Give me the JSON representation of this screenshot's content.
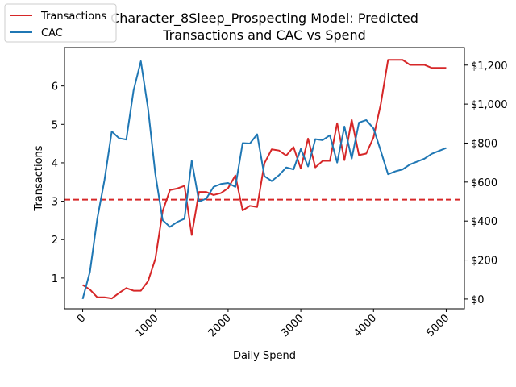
{
  "chart_data": {
    "type": "line",
    "title_lines": [
      "Character_8Sleep_Prospecting Model: Predicted",
      "Transactions and CAC vs Spend"
    ],
    "xlabel": "Daily Spend",
    "ylabel_left": "Transactions",
    "ylabel_right": "",
    "xlim": [
      -250,
      5250
    ],
    "ylim_left": [
      0.2,
      7.0
    ],
    "ylim_right": [
      -50,
      1290
    ],
    "x_ticks": [
      0,
      1000,
      2000,
      3000,
      4000,
      5000
    ],
    "x_tick_labels": [
      "0",
      "1000",
      "2000",
      "3000",
      "4000",
      "5000"
    ],
    "y_left_ticks": [
      1,
      2,
      3,
      4,
      5,
      6
    ],
    "y_left_tick_labels": [
      "1",
      "2",
      "3",
      "4",
      "5",
      "6"
    ],
    "y_right_ticks": [
      0,
      200,
      400,
      600,
      800,
      1000,
      1200
    ],
    "y_right_tick_labels": [
      "$0",
      "$200",
      "$400",
      "$600",
      "$800",
      "$1,000",
      "$1,200"
    ],
    "reference_line": {
      "axis": "left",
      "y": 3.04,
      "color": "#d62728",
      "style": "dashed"
    },
    "legend": {
      "placement": "top-left",
      "entries": [
        "Transactions",
        "CAC"
      ]
    },
    "grid": false,
    "x": [
      0,
      100,
      200,
      300,
      400,
      500,
      600,
      700,
      800,
      900,
      1000,
      1100,
      1200,
      1300,
      1400,
      1500,
      1600,
      1700,
      1800,
      1900,
      2000,
      2100,
      2200,
      2300,
      2400,
      2500,
      2600,
      2700,
      2800,
      2900,
      3000,
      3100,
      3200,
      3300,
      3400,
      3500,
      3600,
      3700,
      3800,
      3900,
      4000,
      4100,
      4200,
      4300,
      4400,
      4500,
      4600,
      4700,
      4800,
      4900,
      5000
    ],
    "series": [
      {
        "name": "Transactions",
        "axis": "left",
        "color": "#d62728",
        "values": [
          0.82,
          0.7,
          0.5,
          0.5,
          0.47,
          0.61,
          0.74,
          0.67,
          0.67,
          0.92,
          1.5,
          2.74,
          3.29,
          3.33,
          3.4,
          2.12,
          3.24,
          3.24,
          3.16,
          3.21,
          3.34,
          3.67,
          2.76,
          2.88,
          2.85,
          3.99,
          4.35,
          4.32,
          4.19,
          4.41,
          3.85,
          4.63,
          3.88,
          4.05,
          4.05,
          5.03,
          4.07,
          5.12,
          4.2,
          4.24,
          4.66,
          5.53,
          6.68,
          6.68,
          6.68,
          6.55,
          6.55,
          6.55,
          6.47,
          6.47,
          6.47
        ]
      },
      {
        "name": "CAC",
        "axis": "right",
        "color": "#1f77b4",
        "values": [
          0,
          140,
          410,
          610,
          860,
          825,
          818,
          1070,
          1220,
          975,
          640,
          405,
          370,
          395,
          412,
          710,
          500,
          515,
          575,
          590,
          595,
          575,
          800,
          798,
          845,
          630,
          605,
          635,
          675,
          665,
          770,
          680,
          820,
          815,
          840,
          700,
          885,
          720,
          905,
          918,
          875,
          760,
          640,
          655,
          665,
          690,
          705,
          720,
          745,
          760,
          775
        ]
      }
    ]
  }
}
